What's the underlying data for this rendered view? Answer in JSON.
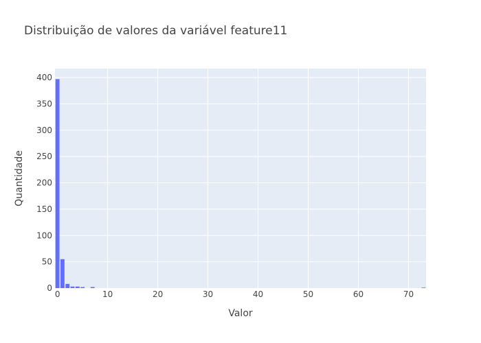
{
  "chart_data": {
    "type": "bar",
    "title": "Distribuição de valores da variável feature11",
    "xlabel": "Valor",
    "ylabel": "Quantidade",
    "x": [
      0,
      1,
      2,
      3,
      4,
      5,
      7,
      73
    ],
    "values": [
      397,
      55,
      8,
      3,
      3,
      2,
      2,
      1
    ],
    "xlim": [
      -0.5,
      73.5
    ],
    "ylim": [
      0,
      417
    ],
    "xticks": [
      0,
      10,
      20,
      30,
      40,
      50,
      60,
      70
    ],
    "yticks": [
      0,
      50,
      100,
      150,
      200,
      250,
      300,
      350,
      400
    ],
    "grid": true,
    "colors": {
      "bar": "#636efa",
      "plot_bg": "#e5ecf6",
      "grid": "#ffffff",
      "text": "#444444"
    }
  }
}
